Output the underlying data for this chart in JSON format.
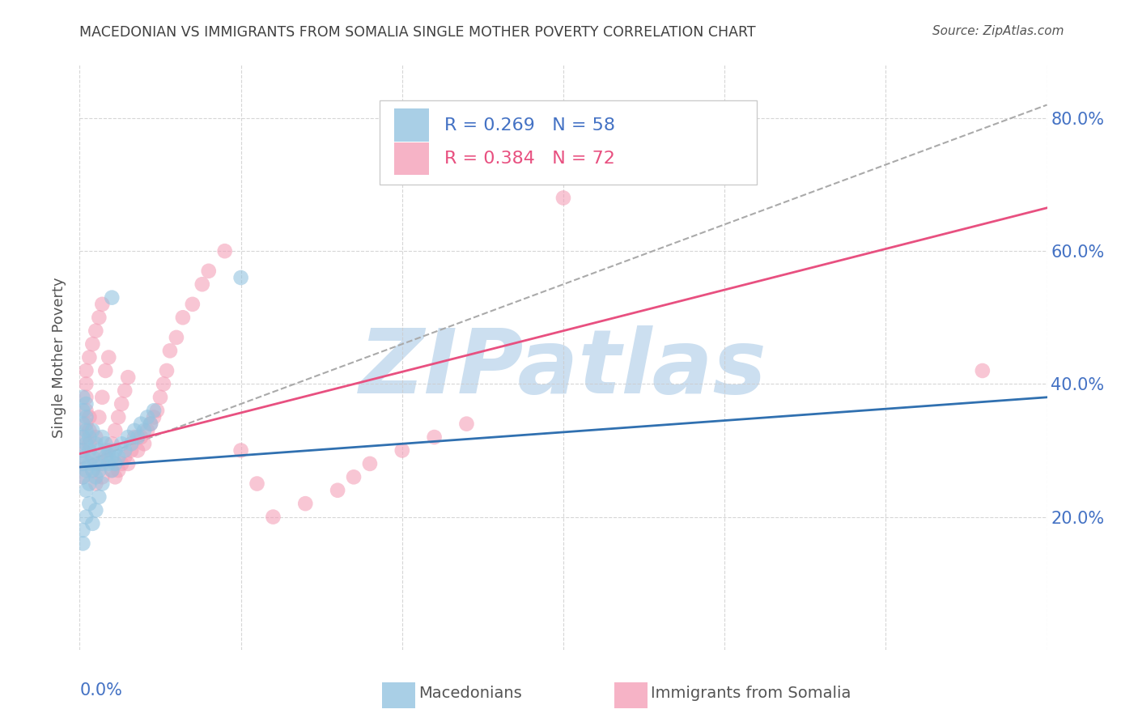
{
  "title": "MACEDONIAN VS IMMIGRANTS FROM SOMALIA SINGLE MOTHER POVERTY CORRELATION CHART",
  "source": "Source: ZipAtlas.com",
  "ylabel": "Single Mother Poverty",
  "y_axis_ticks": [
    0.2,
    0.4,
    0.6,
    0.8
  ],
  "y_axis_tick_labels": [
    "20.0%",
    "40.0%",
    "60.0%",
    "80.0%"
  ],
  "x_tick_positions": [
    0.0,
    0.05,
    0.1,
    0.15,
    0.2,
    0.25,
    0.3
  ],
  "legend_macedonians": "Macedonians",
  "legend_somalia": "Immigrants from Somalia",
  "legend_r1": "0.269",
  "legend_n1": "58",
  "legend_r2": "0.384",
  "legend_n2": "72",
  "watermark": "ZIPatlas",
  "color_blue": "#94c4e0",
  "color_pink": "#f4a0b8",
  "color_trendline_blue": "#3070b0",
  "color_trendline_pink": "#e85080",
  "color_axis_labels": "#4472c4",
  "color_title": "#404040",
  "color_watermark": "#ccdff0",
  "xlim": [
    0.0,
    0.3
  ],
  "ylim": [
    0.0,
    0.88
  ],
  "macedonian_x": [
    0.001,
    0.001,
    0.001,
    0.001,
    0.001,
    0.001,
    0.001,
    0.001,
    0.002,
    0.002,
    0.002,
    0.002,
    0.002,
    0.002,
    0.003,
    0.003,
    0.003,
    0.003,
    0.004,
    0.004,
    0.004,
    0.005,
    0.005,
    0.005,
    0.006,
    0.006,
    0.007,
    0.007,
    0.008,
    0.008,
    0.009,
    0.009,
    0.01,
    0.01,
    0.011,
    0.011,
    0.012,
    0.013,
    0.014,
    0.015,
    0.016,
    0.017,
    0.018,
    0.019,
    0.02,
    0.021,
    0.022,
    0.023,
    0.001,
    0.001,
    0.002,
    0.003,
    0.004,
    0.005,
    0.006,
    0.007,
    0.01,
    0.05
  ],
  "macedonian_y": [
    0.26,
    0.28,
    0.3,
    0.32,
    0.34,
    0.36,
    0.38,
    0.29,
    0.24,
    0.27,
    0.31,
    0.33,
    0.35,
    0.37,
    0.25,
    0.28,
    0.3,
    0.32,
    0.27,
    0.29,
    0.33,
    0.26,
    0.28,
    0.31,
    0.27,
    0.3,
    0.28,
    0.32,
    0.29,
    0.31,
    0.28,
    0.3,
    0.27,
    0.29,
    0.28,
    0.3,
    0.29,
    0.31,
    0.3,
    0.32,
    0.31,
    0.33,
    0.32,
    0.34,
    0.33,
    0.35,
    0.34,
    0.36,
    0.16,
    0.18,
    0.2,
    0.22,
    0.19,
    0.21,
    0.23,
    0.25,
    0.53,
    0.56
  ],
  "somalia_x": [
    0.001,
    0.001,
    0.001,
    0.001,
    0.002,
    0.002,
    0.002,
    0.002,
    0.002,
    0.003,
    0.003,
    0.003,
    0.003,
    0.004,
    0.004,
    0.004,
    0.005,
    0.005,
    0.005,
    0.006,
    0.006,
    0.006,
    0.007,
    0.007,
    0.007,
    0.008,
    0.008,
    0.009,
    0.009,
    0.01,
    0.01,
    0.011,
    0.011,
    0.012,
    0.012,
    0.013,
    0.013,
    0.014,
    0.014,
    0.015,
    0.015,
    0.016,
    0.017,
    0.018,
    0.019,
    0.02,
    0.021,
    0.022,
    0.023,
    0.024,
    0.025,
    0.026,
    0.027,
    0.028,
    0.03,
    0.032,
    0.035,
    0.038,
    0.04,
    0.045,
    0.05,
    0.055,
    0.06,
    0.07,
    0.08,
    0.085,
    0.09,
    0.1,
    0.11,
    0.12,
    0.28,
    0.15
  ],
  "somalia_y": [
    0.26,
    0.28,
    0.3,
    0.32,
    0.34,
    0.36,
    0.38,
    0.4,
    0.42,
    0.31,
    0.33,
    0.35,
    0.44,
    0.27,
    0.29,
    0.46,
    0.25,
    0.32,
    0.48,
    0.28,
    0.35,
    0.5,
    0.26,
    0.38,
    0.52,
    0.3,
    0.42,
    0.29,
    0.44,
    0.27,
    0.31,
    0.26,
    0.33,
    0.27,
    0.35,
    0.28,
    0.37,
    0.29,
    0.39,
    0.28,
    0.41,
    0.3,
    0.32,
    0.3,
    0.32,
    0.31,
    0.33,
    0.34,
    0.35,
    0.36,
    0.38,
    0.4,
    0.42,
    0.45,
    0.47,
    0.5,
    0.52,
    0.55,
    0.57,
    0.6,
    0.3,
    0.25,
    0.2,
    0.22,
    0.24,
    0.26,
    0.28,
    0.3,
    0.32,
    0.34,
    0.42,
    0.68
  ],
  "trendline_blue": [
    0.0,
    0.275,
    0.3,
    0.38
  ],
  "trendline_pink": [
    0.0,
    0.295,
    0.3,
    0.665
  ],
  "dashed_line": [
    0.0,
    0.28,
    0.3,
    0.82
  ]
}
